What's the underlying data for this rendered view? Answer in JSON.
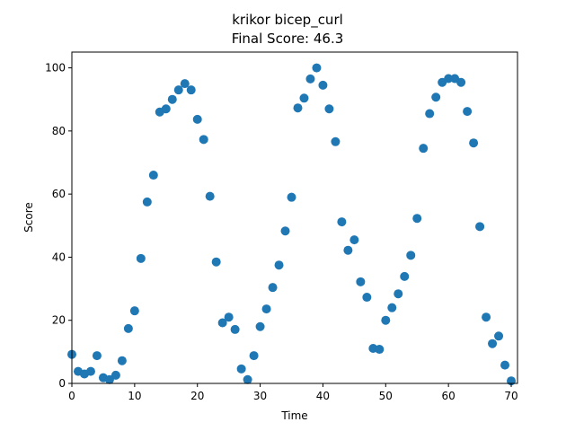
{
  "chart_data": {
    "type": "scatter",
    "title": "krikor bicep_curl",
    "subtitle": "Final Score: 46.3",
    "xlabel": "Time",
    "ylabel": "Score",
    "xlim": [
      0,
      71
    ],
    "ylim": [
      0,
      105
    ],
    "xticks": [
      0,
      10,
      20,
      30,
      40,
      50,
      60,
      70
    ],
    "yticks": [
      0,
      20,
      40,
      60,
      80,
      100
    ],
    "grid": false,
    "marker_color": "#1f77b4",
    "series": [
      {
        "x": [
          0,
          1,
          2,
          3,
          4,
          5,
          6,
          7,
          8,
          9,
          10,
          11,
          12,
          13,
          14,
          15,
          16,
          17,
          18,
          19,
          20,
          21,
          22,
          23,
          24,
          25,
          26,
          27,
          28,
          29,
          30,
          31,
          32,
          33,
          34,
          35,
          36,
          37,
          38,
          39,
          40,
          41,
          42,
          43,
          44,
          45,
          46,
          47,
          48,
          49,
          50,
          51,
          52,
          53,
          54,
          55,
          56,
          57,
          58,
          59,
          60,
          61,
          62,
          63,
          64,
          65,
          66,
          67,
          68,
          69,
          70
        ],
        "y": [
          9.2,
          3.8,
          3.0,
          3.8,
          8.8,
          1.8,
          1.2,
          2.6,
          7.2,
          17.4,
          23.0,
          39.6,
          57.5,
          66.0,
          86.0,
          87.0,
          90.0,
          93.0,
          95.0,
          93.0,
          83.7,
          77.3,
          59.3,
          38.5,
          19.2,
          21.0,
          17.1,
          4.6,
          1.2,
          8.8,
          18.0,
          23.6,
          30.4,
          37.5,
          48.3,
          59.0,
          87.3,
          90.4,
          96.5,
          100.0,
          94.5,
          87.0,
          76.6,
          51.2,
          42.2,
          45.5,
          32.2,
          27.3,
          11.1,
          10.8,
          20.0,
          24.0,
          28.4,
          33.9,
          40.6,
          52.3,
          74.5,
          85.5,
          90.7,
          95.4,
          96.6,
          96.6,
          95.4,
          86.2,
          76.2,
          49.7,
          21.0,
          12.6,
          15.0,
          5.8,
          0.8
        ]
      }
    ]
  }
}
